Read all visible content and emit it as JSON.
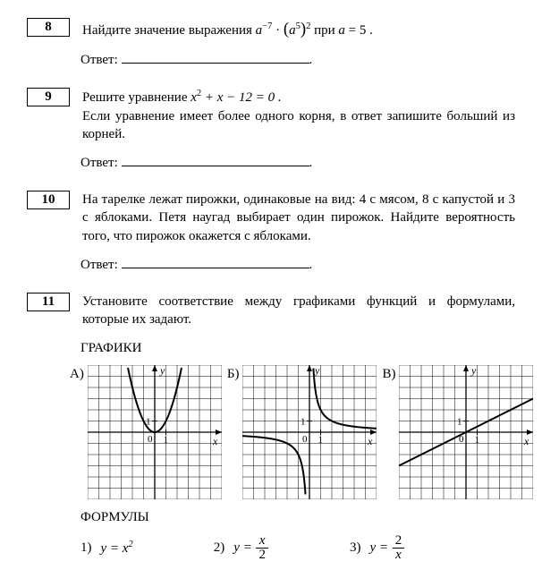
{
  "problems": {
    "p8": {
      "num": "8",
      "text_before": "Найдите значение выражения ",
      "expr_a": "a",
      "exp1": "−7",
      "dot": " · ",
      "lp": "(",
      "expr_b": "a",
      "exp2": "5",
      "rp": ")",
      "exp3": "2",
      "text_after": " при ",
      "cond_var": "a",
      "cond_eq": " = 5 .",
      "answer_label": "Ответ: ",
      "period": "."
    },
    "p9": {
      "num": "9",
      "text1": "Решите уравнение ",
      "eq_var": "x",
      "eq_sq": "2",
      "eq_rest": " + x − 12 = 0 .",
      "text2": "Если уравнение имеет более одного корня, в ответ запишите больший из корней.",
      "answer_label": "Ответ: ",
      "period": "."
    },
    "p10": {
      "num": "10",
      "text": "На тарелке лежат пирожки, одинаковые на вид: 4 с мясом, 8 с капустой и 3 с яблоками. Петя наугад выбирает один пирожок. Найдите вероятность того, что пирожок окажется с яблоками.",
      "answer_label": "Ответ: ",
      "period": "."
    },
    "p11": {
      "num": "11",
      "text": "Установите соответствие между графиками функций и формулами, которые их задают.",
      "graphs_label": "ГРАФИКИ",
      "g_labels": {
        "a": "А)",
        "b": "Б)",
        "c": "В)"
      },
      "formulas_label": "ФОРМУЛЫ",
      "f_nums": {
        "f1": "1)",
        "f2": "2)",
        "f3": "3)"
      },
      "f_eq": "y =",
      "f1_var": "x",
      "f1_exp": "2",
      "f2_num": "x",
      "f2_den": "2",
      "f3_num": "2",
      "f3_den": "x"
    }
  },
  "graphs": {
    "size": 150,
    "cells": 12,
    "grid_color": "#000000",
    "bg": "#ffffff",
    "axis_labels": {
      "x": "x",
      "y": "y",
      "one": "1",
      "zero": "0"
    },
    "A": {
      "type": "parabola",
      "vertex_grid": [
        6,
        6
      ],
      "scale": 1
    },
    "B": {
      "type": "hyperbola",
      "k": 2
    },
    "C": {
      "type": "line",
      "slope": 0.5,
      "intercept": 0
    }
  }
}
